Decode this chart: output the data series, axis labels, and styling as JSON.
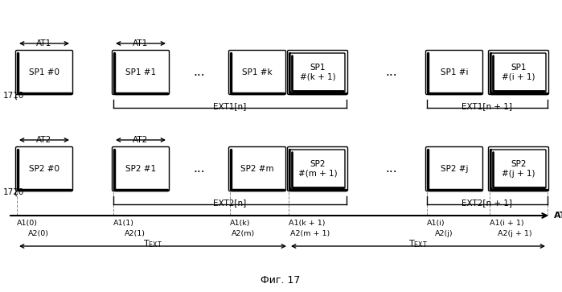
{
  "title": "Фиг. 17",
  "bg_color": "#ffffff",
  "row1_label": "1710",
  "row2_label": "1720",
  "atc_label": "ATC",
  "ext1_n_label": "EXT1[n]",
  "ext1_n1_label": "EXT1[n + 1]",
  "ext2_n_label": "EXT2[n]",
  "ext2_n1_label": "EXT2[n + 1]",
  "sp1_labels": [
    "SP1 #0",
    "SP1 #1",
    "SP1 #k",
    "SP1\n#(k + 1)",
    "SP1 #i",
    "SP1\n#(i + 1)"
  ],
  "sp2_labels": [
    "SP2 #0",
    "SP2 #1",
    "SP2 #m",
    "SP2\n#(m + 1)",
    "SP2 #j",
    "SP2\n#(j + 1)"
  ],
  "a1_labels": [
    "A1(0)",
    "A1(1)",
    "A1(k)",
    "A1(k + 1)",
    "A1(i)",
    "A1(i + 1)"
  ],
  "a2_labels": [
    "A2(0)",
    "A2(1)",
    "A2(m)",
    "A2(m + 1)",
    "A2(j)",
    "A2(j + 1)"
  ]
}
